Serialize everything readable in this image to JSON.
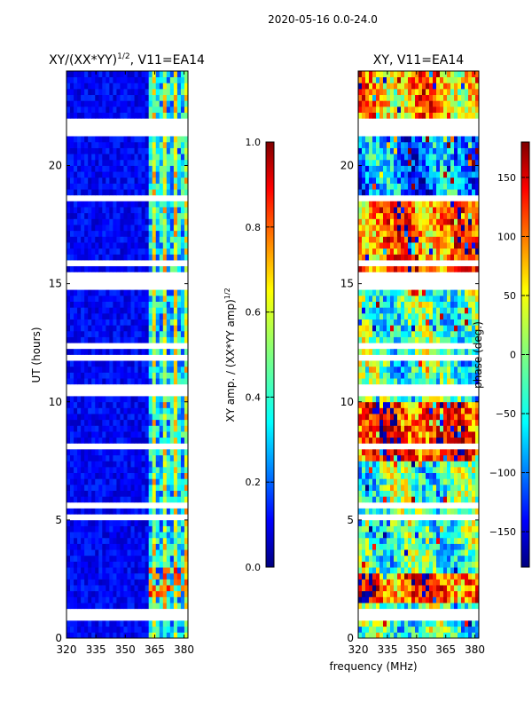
{
  "figure": {
    "suptitle": "2020-05-16 0.0-24.0",
    "xlabel_shared": "frequency (MHz)"
  },
  "colors": {
    "jet_stops": [
      "#00007f",
      "#0000ff",
      "#007fff",
      "#00ffff",
      "#7fff7f",
      "#ffff00",
      "#ff7f00",
      "#ff0000",
      "#7f0000"
    ],
    "gap": "#ffffff"
  },
  "chart_data": [
    {
      "type": "heatmap",
      "title": "XY/(XX*YY)",
      "title_superscript": "1/2",
      "title_suffix": ", V11=EA14",
      "xlabel": "",
      "ylabel": "UT (hours)",
      "xlim": [
        320,
        382
      ],
      "ylim": [
        0,
        24
      ],
      "xticks": [
        "320",
        "335",
        "350",
        "365",
        "380"
      ],
      "xtick_values": [
        320,
        335,
        350,
        365,
        380
      ],
      "yticks": [
        "0",
        "5",
        "10",
        "15",
        "20"
      ],
      "ytick_values": [
        0,
        5,
        10,
        15,
        20
      ],
      "colorbar": {
        "label": "XY amp. / (XX*YY amp)",
        "label_superscript": "1/2",
        "range": [
          0.0,
          1.0
        ],
        "ticks": [
          "0.0",
          "0.2",
          "0.4",
          "0.6",
          "0.8",
          "1.0"
        ],
        "tick_values": [
          0.0,
          0.2,
          0.4,
          0.6,
          0.8,
          1.0
        ]
      },
      "description_values": {
        "low_band_mhz": [
          320,
          362
        ],
        "low_band_amp": 0.12,
        "high_band_mhz": [
          362,
          382
        ],
        "high_band_amp": 0.45,
        "flagged_hours": [
          [
            21.3,
            21.95
          ],
          [
            10.35,
            10.65
          ],
          [
            0.8,
            1.3
          ],
          [
            5.55,
            5.75
          ],
          [
            15.0,
            15.15
          ]
        ]
      }
    },
    {
      "type": "heatmap",
      "title": "XY, V11=EA14",
      "xlabel": "frequency (MHz)",
      "ylabel": "",
      "xlim": [
        320,
        382
      ],
      "ylim": [
        0,
        24
      ],
      "xticks": [
        "320",
        "335",
        "350",
        "365",
        "380"
      ],
      "xtick_values": [
        320,
        335,
        350,
        365,
        380
      ],
      "yticks": [
        "0",
        "5",
        "10",
        "15",
        "20"
      ],
      "ytick_values": [
        0,
        5,
        10,
        15,
        20
      ],
      "colorbar": {
        "label": "phase (deg.)",
        "range": [
          -180,
          180
        ],
        "ticks": [
          "150",
          "100",
          "50",
          "0",
          "−50",
          "−100",
          "−150"
        ],
        "tick_values": [
          150,
          100,
          50,
          0,
          -50,
          -100,
          -150
        ]
      },
      "description_values": {
        "phase_range_deg": [
          -180,
          180
        ],
        "flagged_hours": [
          [
            21.3,
            21.95
          ],
          [
            10.35,
            10.65
          ],
          [
            0.8,
            1.3
          ],
          [
            5.55,
            5.75
          ],
          [
            15.0,
            15.15
          ]
        ]
      }
    }
  ]
}
